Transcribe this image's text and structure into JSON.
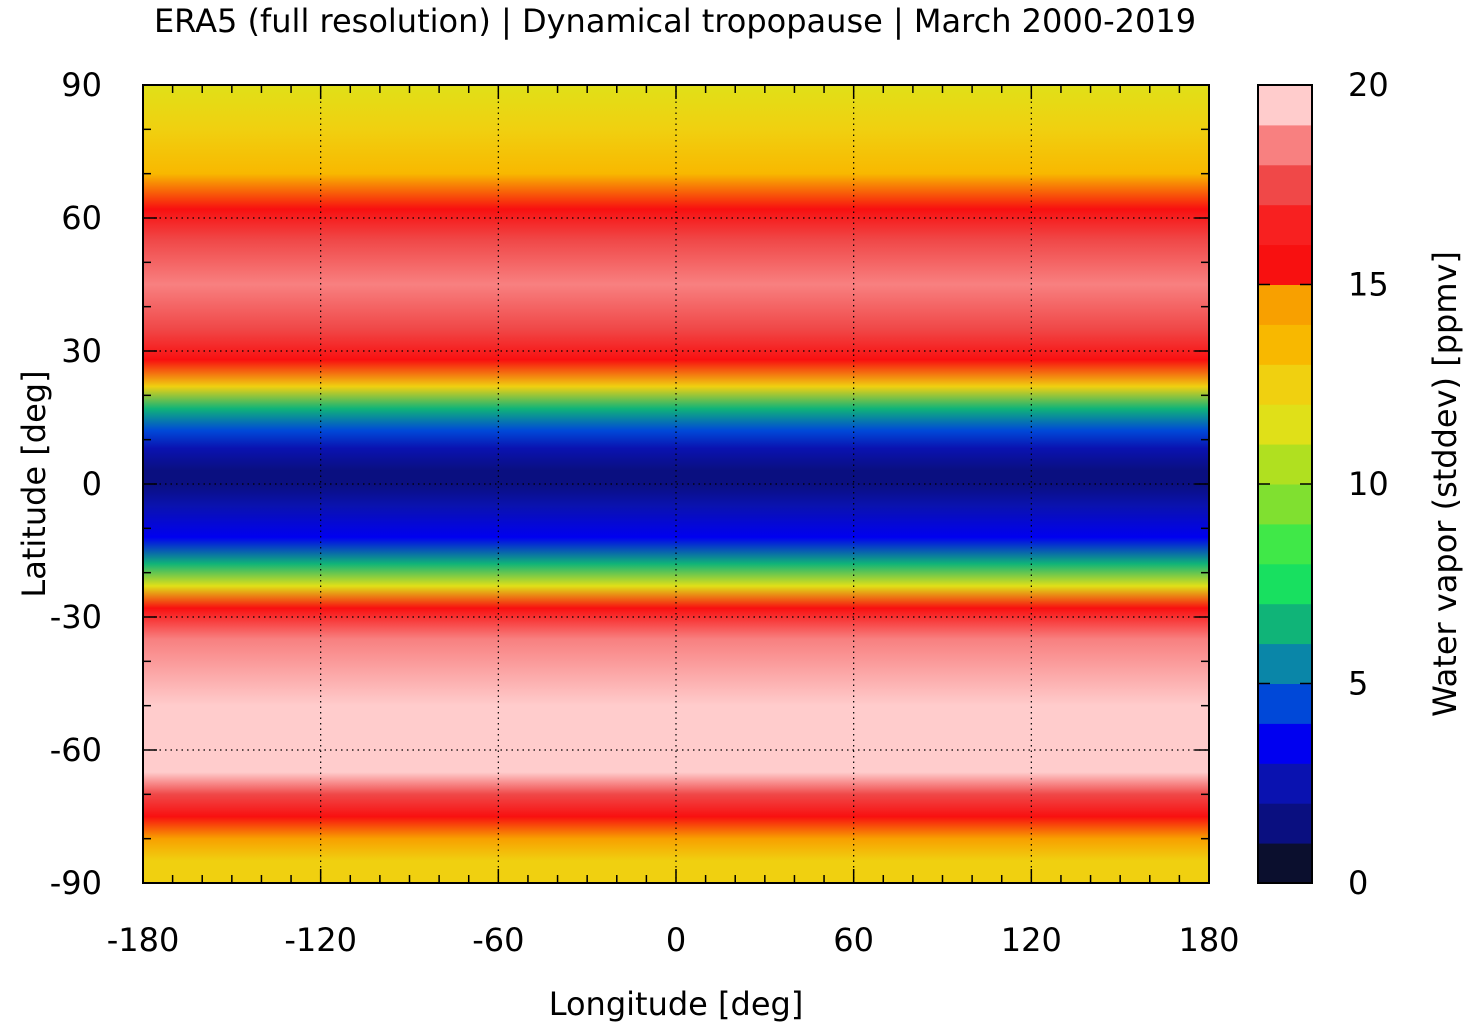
{
  "chart_data": {
    "type": "heatmap",
    "title": "ERA5 (full resolution) | Dynamical tropopause | March 2000-2019",
    "xlabel": "Longitude [deg]",
    "ylabel": "Latitude [deg]",
    "xlim": [
      -180,
      180
    ],
    "ylim": [
      -90,
      90
    ],
    "x_ticks": [
      "-180",
      "-120",
      "-60",
      "0",
      "60",
      "120",
      "180"
    ],
    "y_ticks": [
      "90",
      "60",
      "30",
      "0",
      "-30",
      "-60",
      "-90"
    ],
    "grid": true,
    "colorbar": {
      "label": "Water vapor (stddev) [ppmv]",
      "range": [
        0,
        20
      ],
      "ticks": [
        "0",
        "5",
        "10",
        "15",
        "20"
      ],
      "levels": 20,
      "colors": [
        "#0b0f2e",
        "#0a0f80",
        "#0a12b0",
        "#0000f0",
        "#0048d8",
        "#0a6fc0",
        "#0a86a8",
        "#10b478",
        "#18e060",
        "#40e848",
        "#80e030",
        "#b0e020",
        "#e0e018",
        "#f0d010",
        "#f8b800",
        "#f8a000",
        "#f87010",
        "#f81010",
        "#f82020",
        "#f04848",
        "#f88080",
        "#ffcccc"
      ]
    },
    "zonal_profile": {
      "lat": [
        90,
        80,
        70,
        62,
        55,
        45,
        35,
        28,
        22,
        17,
        12,
        8,
        3,
        0,
        -5,
        -12,
        -18,
        -23,
        -28,
        -35,
        -50,
        -65,
        -70,
        -75,
        -80,
        -85,
        -90
      ],
      "value": [
        11.5,
        12.0,
        13.5,
        16.0,
        18.5,
        19.0,
        18.0,
        16.5,
        12.0,
        7.0,
        3.5,
        1.5,
        1.0,
        1.0,
        1.5,
        3.0,
        6.5,
        11.0,
        16.0,
        19.0,
        20.0,
        20.0,
        18.0,
        16.0,
        14.0,
        12.5,
        12.0
      ]
    }
  }
}
